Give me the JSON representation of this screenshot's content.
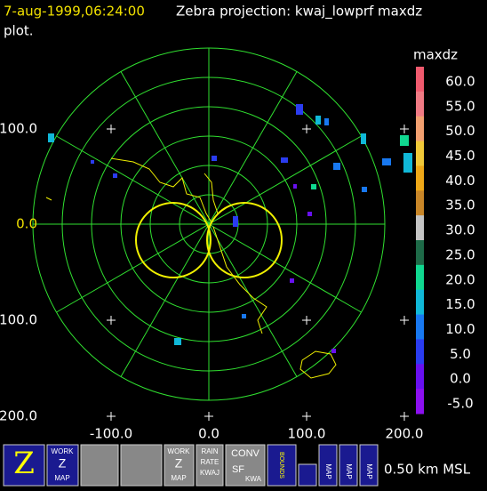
{
  "header": {
    "time": "7-aug-1999,06:24:00",
    "title": "Zebra projection: kwaj_lowprf maxdz",
    "title_cont": "plot."
  },
  "axes": {
    "y_labels": [
      "100.0",
      "0.0",
      "100.0",
      "200.0"
    ],
    "x_labels": [
      "-100.0",
      "0.0",
      "100.0",
      "200.0"
    ]
  },
  "colorbar": {
    "title": "maxdz",
    "entries": [
      {
        "label": "60.0",
        "color": "#f05a6e"
      },
      {
        "label": "55.0",
        "color": "#f07a84"
      },
      {
        "label": "50.0",
        "color": "#f2a070"
      },
      {
        "label": "45.0",
        "color": "#f0c838"
      },
      {
        "label": "40.0",
        "color": "#eea818"
      },
      {
        "label": "35.0",
        "color": "#c88628"
      },
      {
        "label": "30.0",
        "color": "#c4c4c4"
      },
      {
        "label": "25.0",
        "color": "#1e6a48"
      },
      {
        "label": "20.0",
        "color": "#10d890"
      },
      {
        "label": "15.0",
        "color": "#10b8d8"
      },
      {
        "label": "10.0",
        "color": "#1878f0"
      },
      {
        "label": "5.0",
        "color": "#2a3cf0"
      },
      {
        "label": "0.0",
        "color": "#6810f0"
      },
      {
        "label": "-5.0",
        "color": "#8c10f0"
      }
    ]
  },
  "toolbar": {
    "work_map": [
      "WORK",
      "Z",
      "MAP"
    ],
    "rain_rate": [
      "RAIN",
      "RATE",
      "KWAJ"
    ],
    "conv": [
      "CONV",
      "SF",
      "KWA"
    ],
    "bounds": "BOUNDS",
    "map": "MAP",
    "status": "0.50 km MSL"
  }
}
